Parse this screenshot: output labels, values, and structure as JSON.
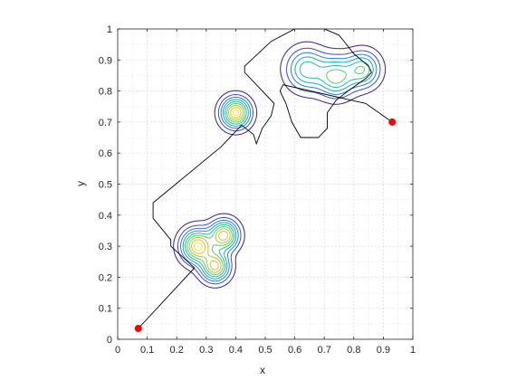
{
  "chart_data": {
    "type": "contour",
    "xlabel": "x",
    "ylabel": "y",
    "xlim": [
      0,
      1
    ],
    "ylim": [
      0,
      1
    ],
    "xticks": [
      "0",
      "0.1",
      "0.2",
      "0.3",
      "0.4",
      "0.5",
      "0.6",
      "0.7",
      "0.8",
      "0.9",
      "1"
    ],
    "yticks": [
      "0",
      "0.1",
      "0.2",
      "0.3",
      "0.4",
      "0.5",
      "0.6",
      "0.7",
      "0.8",
      "0.9",
      "1"
    ],
    "grid": true,
    "gaussians": [
      {
        "cx": 0.27,
        "cy": 0.3,
        "sigma": 0.034,
        "amp": 1.0
      },
      {
        "cx": 0.36,
        "cy": 0.335,
        "sigma": 0.03,
        "amp": 0.92
      },
      {
        "cx": 0.33,
        "cy": 0.235,
        "sigma": 0.03,
        "amp": 0.88
      },
      {
        "cx": 0.4,
        "cy": 0.73,
        "sigma": 0.03,
        "amp": 1.0
      },
      {
        "cx": 0.64,
        "cy": 0.87,
        "sigma": 0.042,
        "amp": 0.55
      },
      {
        "cx": 0.74,
        "cy": 0.845,
        "sigma": 0.04,
        "amp": 0.65
      },
      {
        "cx": 0.83,
        "cy": 0.87,
        "sigma": 0.036,
        "amp": 0.58
      }
    ],
    "contour_levels": [
      0.06,
      0.15,
      0.25,
      0.36,
      0.48,
      0.6,
      0.72,
      0.84,
      0.95
    ],
    "contour_colors": [
      "#3e1f86",
      "#3b4fc4",
      "#2a7fe0",
      "#1aa6c8",
      "#22c09a",
      "#5fcc6a",
      "#a8c944",
      "#e0bf2e",
      "#f9e721"
    ],
    "path": [
      [
        0.07,
        0.035
      ],
      [
        0.26,
        0.23
      ],
      [
        0.18,
        0.3
      ],
      [
        0.18,
        0.32
      ],
      [
        0.12,
        0.39
      ],
      [
        0.12,
        0.44
      ],
      [
        0.35,
        0.62
      ],
      [
        0.42,
        0.69
      ],
      [
        0.46,
        0.66
      ],
      [
        0.47,
        0.63
      ],
      [
        0.49,
        0.68
      ],
      [
        0.52,
        0.72
      ],
      [
        0.53,
        0.76
      ],
      [
        0.47,
        0.82
      ],
      [
        0.43,
        0.86
      ],
      [
        0.43,
        0.88
      ],
      [
        0.52,
        0.96
      ],
      [
        0.6,
        1.0
      ],
      [
        0.7,
        1.0
      ],
      [
        0.75,
        0.98
      ],
      [
        0.8,
        0.92
      ],
      [
        0.85,
        0.88
      ],
      [
        0.86,
        0.86
      ],
      [
        0.84,
        0.84
      ],
      [
        0.78,
        0.8
      ],
      [
        0.74,
        0.77
      ],
      [
        0.71,
        0.73
      ],
      [
        0.71,
        0.68
      ],
      [
        0.68,
        0.65
      ],
      [
        0.62,
        0.65
      ],
      [
        0.59,
        0.7
      ],
      [
        0.57,
        0.76
      ],
      [
        0.55,
        0.8
      ],
      [
        0.56,
        0.82
      ],
      [
        0.84,
        0.76
      ],
      [
        0.93,
        0.7
      ]
    ],
    "start_point": [
      0.07,
      0.035
    ],
    "end_point": [
      0.93,
      0.7
    ],
    "line_color": "#000000",
    "marker_color": "#ff0000"
  }
}
